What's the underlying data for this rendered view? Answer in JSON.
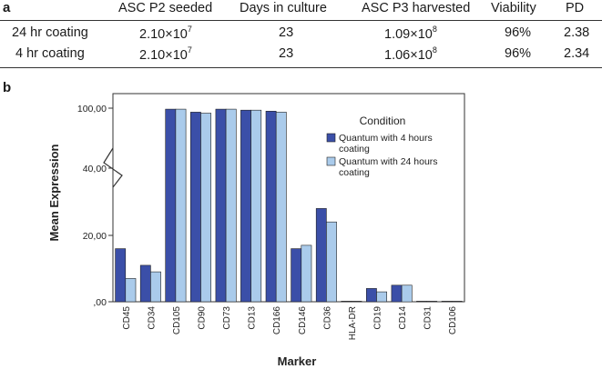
{
  "panel_a_label": "a",
  "panel_b_label": "b",
  "table": {
    "headers": [
      "",
      "ASC P2 seeded",
      "Days in culture",
      "ASC P3 harvested",
      "Viability",
      "PD"
    ],
    "rows": [
      {
        "condition": "24 hr coating",
        "seeded_base": "2.10×10",
        "seeded_exp": "7",
        "days": "23",
        "harvested_base": "1.09×10",
        "harvested_exp": "8",
        "viability": "96%",
        "pd": "2.38"
      },
      {
        "condition": "4 hr coating",
        "seeded_base": "2.10×10",
        "seeded_exp": "7",
        "days": "23",
        "harvested_base": "1.06×10",
        "harvested_exp": "8",
        "viability": "96%",
        "pd": "2.34"
      }
    ]
  },
  "chart_data": {
    "type": "bar",
    "title": "",
    "xlabel": "Marker",
    "ylabel": "Mean Expression",
    "yaxis_break": true,
    "yticks": [
      {
        "value": 0,
        "label": ",00"
      },
      {
        "value": 20,
        "label": "20,00"
      },
      {
        "value": 40,
        "label": "40,00"
      },
      {
        "value": 100,
        "label": "100,00"
      }
    ],
    "categories": [
      "CD45",
      "CD34",
      "CD105",
      "CD90",
      "CD73",
      "CD13",
      "CD166",
      "CD146",
      "CD36",
      "HLA-DR",
      "CD19",
      "CD14",
      "CD31",
      "CD106"
    ],
    "legend_title": "Condition",
    "legend_position": "top-right",
    "series": [
      {
        "name": "Quantum with 4 hours coating",
        "color": "#3b4fa8",
        "values": [
          16,
          11,
          99,
          96,
          99,
          98,
          97,
          16,
          28,
          0,
          4,
          5,
          0,
          0
        ]
      },
      {
        "name": "Quantum with 24 hours coating",
        "color": "#aacbeb",
        "values": [
          7,
          9,
          99,
          95,
          99,
          98,
          96,
          17,
          24,
          0,
          3,
          5,
          0,
          0
        ]
      }
    ]
  }
}
